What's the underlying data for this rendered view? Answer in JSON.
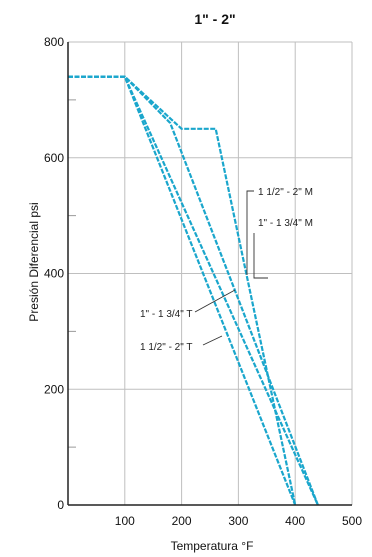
{
  "chart_data": {
    "type": "line",
    "title": "1\" - 2\"",
    "xlabel": "Temperatura °F",
    "ylabel": "Presión Diferencial psi",
    "xlim": [
      0,
      500
    ],
    "ylim": [
      0,
      800
    ],
    "xticks": [
      "100",
      "200",
      "300",
      "400",
      "500"
    ],
    "yticks": [
      "0",
      "200",
      "400",
      "600",
      "800"
    ],
    "grid": true,
    "line_color": "#1aa6cc",
    "series": [
      {
        "name": "1\" - 1 3/4\" T",
        "points": [
          [
            0,
            740
          ],
          [
            100,
            740
          ],
          [
            400,
            0
          ]
        ]
      },
      {
        "name": "1 1/2\" - 2\" T",
        "points": [
          [
            0,
            740
          ],
          [
            100,
            740
          ],
          [
            440,
            0
          ]
        ]
      },
      {
        "name": "1 1/2\" - 2\" M",
        "points": [
          [
            0,
            740
          ],
          [
            100,
            740
          ],
          [
            180,
            660
          ],
          [
            440,
            0
          ]
        ]
      },
      {
        "name": "1\" - 1 3/4\" M",
        "points": [
          [
            0,
            740
          ],
          [
            100,
            740
          ],
          [
            200,
            650
          ],
          [
            260,
            650
          ],
          [
            400,
            0
          ]
        ]
      }
    ],
    "annotations": [
      {
        "text": "1 1/2\" - 2\" M",
        "series": 2
      },
      {
        "text": "1\" - 1 3/4\" M",
        "series": 3
      },
      {
        "text": "1\" - 1 3/4\" T",
        "series": 0
      },
      {
        "text": "1 1/2\" - 2\" T",
        "series": 1
      }
    ]
  }
}
